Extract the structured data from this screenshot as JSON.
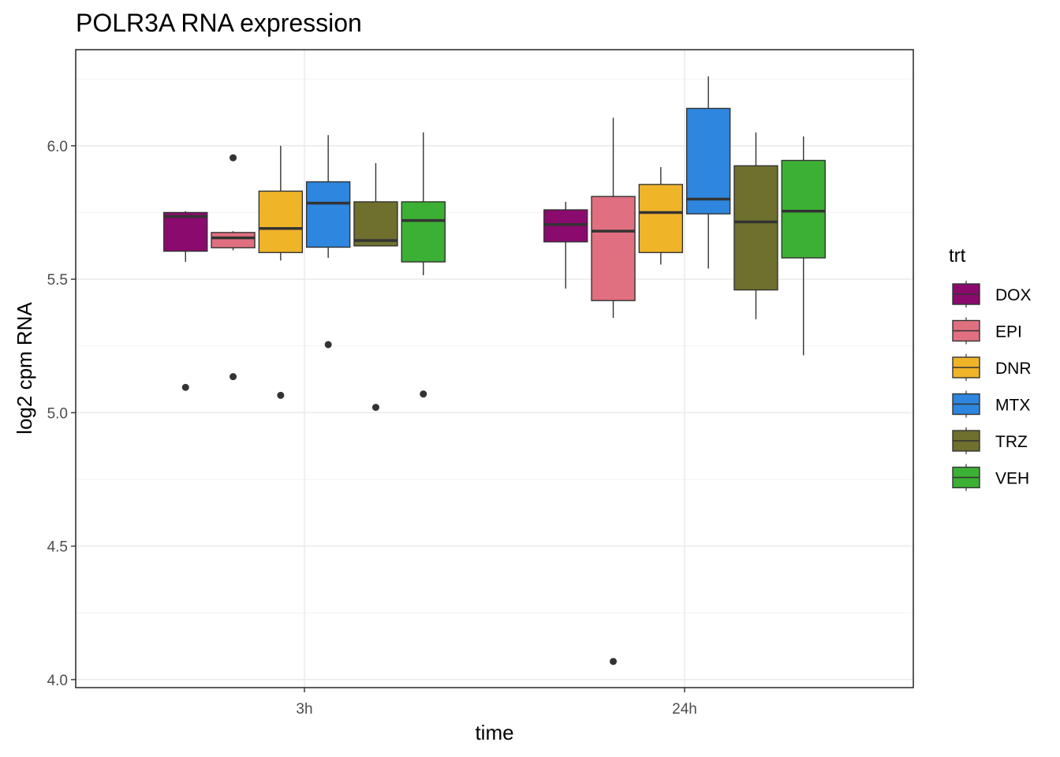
{
  "chart_data": {
    "type": "boxplot",
    "title": "POLR3A RNA expression",
    "xlabel": "time",
    "ylabel": "log2 cpm RNA",
    "categories": [
      "3h",
      "24h"
    ],
    "ylim": [
      3.97,
      6.36
    ],
    "yticks": [
      4.0,
      4.5,
      5.0,
      5.5,
      6.0
    ],
    "ytick_labels": [
      "4.0",
      "4.5",
      "5.0",
      "5.5",
      "6.0"
    ],
    "grid": true,
    "legend": {
      "title": "trt",
      "position": "right",
      "entries": [
        "DOX",
        "EPI",
        "DNR",
        "MTX",
        "TRZ",
        "VEH"
      ]
    },
    "colors": {
      "DOX": "#8b0a6e",
      "EPI": "#e07080",
      "DNR": "#f0b429",
      "MTX": "#2e86de",
      "TRZ": "#6f6f2e",
      "VEH": "#3cb034"
    },
    "series": [
      {
        "name": "DOX",
        "boxes": [
          {
            "category": "3h",
            "lower_whisker": 5.565,
            "q1": 5.605,
            "median": 5.735,
            "q3": 5.75,
            "upper_whisker": 5.755,
            "outliers": [
              5.095
            ]
          },
          {
            "category": "24h",
            "lower_whisker": 5.465,
            "q1": 5.64,
            "median": 5.705,
            "q3": 5.76,
            "upper_whisker": 5.79,
            "outliers": []
          }
        ]
      },
      {
        "name": "EPI",
        "boxes": [
          {
            "category": "3h",
            "lower_whisker": 5.608,
            "q1": 5.618,
            "median": 5.655,
            "q3": 5.675,
            "upper_whisker": 5.68,
            "outliers": [
              5.955,
              5.135
            ]
          },
          {
            "category": "24h",
            "lower_whisker": 5.355,
            "q1": 5.42,
            "median": 5.68,
            "q3": 5.81,
            "upper_whisker": 6.105,
            "outliers": [
              4.068
            ]
          }
        ]
      },
      {
        "name": "DNR",
        "boxes": [
          {
            "category": "3h",
            "lower_whisker": 5.57,
            "q1": 5.6,
            "median": 5.69,
            "q3": 5.83,
            "upper_whisker": 6.0,
            "outliers": [
              5.065
            ]
          },
          {
            "category": "24h",
            "lower_whisker": 5.555,
            "q1": 5.6,
            "median": 5.75,
            "q3": 5.855,
            "upper_whisker": 5.92,
            "outliers": []
          }
        ]
      },
      {
        "name": "MTX",
        "boxes": [
          {
            "category": "3h",
            "lower_whisker": 5.58,
            "q1": 5.62,
            "median": 5.785,
            "q3": 5.865,
            "upper_whisker": 6.04,
            "outliers": [
              5.255
            ]
          },
          {
            "category": "24h",
            "lower_whisker": 5.54,
            "q1": 5.745,
            "median": 5.8,
            "q3": 6.14,
            "upper_whisker": 6.26,
            "outliers": []
          }
        ]
      },
      {
        "name": "TRZ",
        "boxes": [
          {
            "category": "3h",
            "lower_whisker": 5.625,
            "q1": 5.625,
            "median": 5.645,
            "q3": 5.79,
            "upper_whisker": 5.935,
            "outliers": [
              5.02
            ]
          },
          {
            "category": "24h",
            "lower_whisker": 5.35,
            "q1": 5.46,
            "median": 5.715,
            "q3": 5.925,
            "upper_whisker": 6.05,
            "outliers": []
          }
        ]
      },
      {
        "name": "VEH",
        "boxes": [
          {
            "category": "3h",
            "lower_whisker": 5.515,
            "q1": 5.565,
            "median": 5.72,
            "q3": 5.79,
            "upper_whisker": 6.05,
            "outliers": [
              5.07
            ]
          },
          {
            "category": "24h",
            "lower_whisker": 5.215,
            "q1": 5.58,
            "median": 5.755,
            "q3": 5.945,
            "upper_whisker": 6.035,
            "outliers": []
          }
        ]
      }
    ]
  }
}
